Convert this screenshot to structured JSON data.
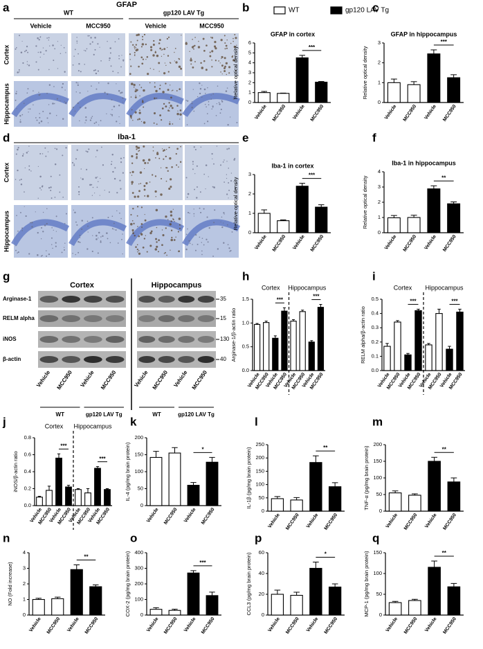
{
  "legend": [
    {
      "name": "WT",
      "color": "#ffffff"
    },
    {
      "name": "gp120 LAV Tg",
      "color": "#000000"
    }
  ],
  "image_panels": [
    {
      "panel": "a",
      "title": "GFAP",
      "groups": [
        "WT",
        "gp120 LAV Tg"
      ],
      "columns": [
        "Vehicle",
        "MCC950",
        "Vehicle",
        "MCC950"
      ],
      "rows": [
        "Cortex",
        "Hippocampus"
      ]
    },
    {
      "panel": "d",
      "title": "Iba-1",
      "rows": [
        "Cortex",
        "Hippocampus"
      ]
    }
  ],
  "blot": {
    "panel": "g",
    "regions": [
      "Cortex",
      "Hippocampus"
    ],
    "rows": [
      "Arginase-1",
      "RELM alpha",
      "iNOS",
      "β-actin"
    ],
    "markers": [
      35,
      15,
      130,
      40
    ],
    "lanes": [
      "Vehicle",
      "MCC950",
      "Vehicle",
      "MCC950"
    ],
    "groups": [
      "WT",
      "gp120 LAV Tg"
    ]
  },
  "chart_data": [
    {
      "type": "bar",
      "panel": "b",
      "title": "GFAP in cortex",
      "ylabel": "Relative optical density",
      "categories": [
        "Vehicle",
        "MCC950",
        "Vehicle",
        "MCC950"
      ],
      "values": [
        1.0,
        0.92,
        4.5,
        2.05
      ],
      "errors": [
        0.12,
        0.03,
        0.25,
        0.07
      ],
      "colors": [
        "#ffffff",
        "#ffffff",
        "#000000",
        "#000000"
      ],
      "ylim": [
        0,
        6
      ],
      "yticks": [
        0,
        1,
        2,
        3,
        4,
        5,
        6
      ],
      "annotations": [
        "***"
      ]
    },
    {
      "type": "bar",
      "panel": "c",
      "title": "GFAP in hippocampus",
      "ylabel": "Relative optical density",
      "categories": [
        "Vehicle",
        "MCC950",
        "Vehicle",
        "MCC950"
      ],
      "values": [
        1.0,
        0.9,
        2.45,
        1.25
      ],
      "errors": [
        0.18,
        0.15,
        0.2,
        0.15
      ],
      "colors": [
        "#ffffff",
        "#ffffff",
        "#000000",
        "#000000"
      ],
      "ylim": [
        0,
        3
      ],
      "yticks": [
        0,
        1,
        2,
        3
      ],
      "annotations": [
        "***"
      ]
    },
    {
      "type": "bar",
      "panel": "e",
      "title": "Iba-1 in cortex",
      "ylabel": "Relative optical density",
      "categories": [
        "Vehicle",
        "MCC950",
        "Vehicle",
        "MCC950"
      ],
      "values": [
        1.0,
        0.62,
        2.4,
        1.32
      ],
      "errors": [
        0.18,
        0.04,
        0.15,
        0.12
      ],
      "colors": [
        "#ffffff",
        "#ffffff",
        "#000000",
        "#000000"
      ],
      "ylim": [
        0,
        3
      ],
      "yticks": [
        0,
        1,
        2,
        3
      ],
      "annotations": [
        "***"
      ]
    },
    {
      "type": "bar",
      "panel": "f",
      "title": "Iba-1 in hippocampus",
      "ylabel": "Relative optical density",
      "categories": [
        "Vehicle",
        "MCC950",
        "Vehicle",
        "MCC950"
      ],
      "values": [
        0.98,
        1.0,
        2.88,
        1.9
      ],
      "errors": [
        0.15,
        0.15,
        0.2,
        0.12
      ],
      "colors": [
        "#ffffff",
        "#ffffff",
        "#000000",
        "#000000"
      ],
      "ylim": [
        0,
        4
      ],
      "yticks": [
        0,
        1,
        2,
        3,
        4
      ],
      "annotations": [
        "**"
      ]
    },
    {
      "type": "bar",
      "panel": "h",
      "group_labels": [
        "Cortex",
        "Hippocampus"
      ],
      "ylabel": "Arginase-1/β-actin ratio",
      "categories": [
        "Vehicle",
        "MCC950",
        "Vehicle",
        "MCC950",
        "Vehicle",
        "MCC950",
        "Vehicle",
        "MCC950"
      ],
      "values": [
        0.97,
        1.01,
        0.68,
        1.25,
        1.04,
        1.24,
        0.6,
        1.33
      ],
      "errors": [
        0.02,
        0.03,
        0.05,
        0.07,
        0.03,
        0.03,
        0.03,
        0.06
      ],
      "colors": [
        "#ffffff",
        "#ffffff",
        "#000000",
        "#000000",
        "#ffffff",
        "#ffffff",
        "#000000",
        "#000000"
      ],
      "ylim": [
        0,
        1.5
      ],
      "yticks": [
        {
          "value": 0,
          "label": "0.0"
        },
        0.5,
        {
          "value": 1,
          "label": "1.0"
        },
        1.5
      ],
      "annotations": [
        "***",
        "***"
      ]
    },
    {
      "type": "bar",
      "panel": "i",
      "group_labels": [
        "Cortex",
        "Hippocampus"
      ],
      "ylabel": "RELM alpha/β-actin ratio",
      "categories": [
        "Vehicle",
        "MCC950",
        "Vehicle",
        "MCC950",
        "Vehicle",
        "MCC950",
        "Vehicle",
        "MCC950"
      ],
      "values": [
        0.17,
        0.34,
        0.11,
        0.42,
        0.18,
        0.4,
        0.15,
        0.41
      ],
      "errors": [
        0.02,
        0.01,
        0.01,
        0.01,
        0.01,
        0.03,
        0.02,
        0.02
      ],
      "colors": [
        "#ffffff",
        "#ffffff",
        "#000000",
        "#000000",
        "#ffffff",
        "#ffffff",
        "#000000",
        "#000000"
      ],
      "ylim": [
        0,
        0.5
      ],
      "yticks": [
        {
          "value": 0,
          "label": "0.0"
        },
        0.1,
        0.2,
        0.3,
        0.4,
        0.5
      ],
      "annotations": [
        "***",
        "***"
      ]
    },
    {
      "type": "bar",
      "panel": "j",
      "group_labels": [
        "Cortex",
        "Hippocampus"
      ],
      "ylabel": "iNOS/β-actin ratio",
      "categories": [
        "Vehicle",
        "MCC950",
        "Vehicle",
        "MCC950",
        "Vehicle",
        "MCC950",
        "Vehicle",
        "MCC950"
      ],
      "values": [
        0.1,
        0.18,
        0.56,
        0.22,
        0.19,
        0.15,
        0.44,
        0.19
      ],
      "errors": [
        0.01,
        0.05,
        0.05,
        0.02,
        0.01,
        0.05,
        0.02,
        0.01
      ],
      "colors": [
        "#ffffff",
        "#ffffff",
        "#000000",
        "#000000",
        "#ffffff",
        "#ffffff",
        "#000000",
        "#000000"
      ],
      "ylim": [
        0,
        0.8
      ],
      "yticks": [
        {
          "value": 0,
          "label": "0.0"
        },
        0.2,
        0.4,
        0.6,
        0.8
      ],
      "annotations": [
        "***",
        "***"
      ]
    },
    {
      "type": "bar",
      "panel": "k",
      "ylabel": "IL-4 (pg/mg brain protein)",
      "categories": [
        "Vehicle",
        "MCC950",
        "Vehicle",
        "MCC950"
      ],
      "values": [
        142,
        155,
        60,
        128
      ],
      "errors": [
        18,
        16,
        8,
        14
      ],
      "colors": [
        "#ffffff",
        "#ffffff",
        "#000000",
        "#000000"
      ],
      "ylim": [
        0,
        200
      ],
      "yticks": [
        0,
        50,
        100,
        150,
        200
      ],
      "annotations": [
        "*"
      ]
    },
    {
      "type": "bar",
      "panel": "l",
      "ylabel": "IL-1β (pg/mg brain protein)",
      "categories": [
        "Vehicle",
        "MCC950",
        "Vehicle",
        "MCC950"
      ],
      "values": [
        47,
        42,
        183,
        92
      ],
      "errors": [
        8,
        9,
        25,
        15
      ],
      "colors": [
        "#ffffff",
        "#ffffff",
        "#000000",
        "#000000"
      ],
      "ylim": [
        0,
        250
      ],
      "yticks": [
        0,
        50,
        100,
        150,
        200,
        250
      ],
      "annotations": [
        "**"
      ]
    },
    {
      "type": "bar",
      "panel": "m",
      "ylabel": "TNF-α (pg/mg brain protein)",
      "categories": [
        "Vehicle",
        "MCC950",
        "Vehicle",
        "MCC950"
      ],
      "values": [
        55,
        48,
        150,
        88
      ],
      "errors": [
        6,
        4,
        12,
        12
      ],
      "colors": [
        "#ffffff",
        "#ffffff",
        "#000000",
        "#000000"
      ],
      "ylim": [
        0,
        200
      ],
      "yticks": [
        0,
        50,
        100,
        150,
        200
      ],
      "annotations": [
        "**"
      ]
    },
    {
      "type": "bar",
      "panel": "n",
      "ylabel": "NO (Fold increase)",
      "categories": [
        "Vehicle",
        "MCC950",
        "Vehicle",
        "MCC950"
      ],
      "values": [
        1.0,
        1.05,
        2.92,
        1.82
      ],
      "errors": [
        0.08,
        0.1,
        0.3,
        0.12
      ],
      "colors": [
        "#ffffff",
        "#ffffff",
        "#000000",
        "#000000"
      ],
      "ylim": [
        0,
        4
      ],
      "yticks": [
        0,
        1,
        2,
        3,
        4
      ],
      "annotations": [
        "**"
      ]
    },
    {
      "type": "bar",
      "panel": "o",
      "ylabel": "COX-2 (pg/mg brain protein)",
      "categories": [
        "Vehicle",
        "MCC950",
        "Vehicle",
        "MCC950"
      ],
      "values": [
        37,
        30,
        270,
        125
      ],
      "errors": [
        10,
        8,
        15,
        22
      ],
      "colors": [
        "#ffffff",
        "#ffffff",
        "#000000",
        "#000000"
      ],
      "ylim": [
        0,
        400
      ],
      "yticks": [
        0,
        100,
        200,
        300,
        400
      ],
      "annotations": [
        "***"
      ]
    },
    {
      "type": "bar",
      "panel": "p",
      "ylabel": "CCL3 (pg/mg brain protein)",
      "categories": [
        "Vehicle",
        "MCC950",
        "Vehicle",
        "MCC950"
      ],
      "values": [
        20,
        19,
        45,
        27
      ],
      "errors": [
        4,
        3,
        6,
        3
      ],
      "colors": [
        "#ffffff",
        "#ffffff",
        "#000000",
        "#000000"
      ],
      "ylim": [
        0,
        60
      ],
      "yticks": [
        0,
        20,
        40,
        60
      ],
      "annotations": [
        "*"
      ]
    },
    {
      "type": "bar",
      "panel": "q",
      "ylabel": "MCP-1 (pg/mg brain protein)",
      "categories": [
        "Vehicle",
        "MCC950",
        "Vehicle",
        "MCC950"
      ],
      "values": [
        30,
        35,
        115,
        68
      ],
      "errors": [
        3,
        3,
        15,
        8
      ],
      "colors": [
        "#ffffff",
        "#ffffff",
        "#000000",
        "#000000"
      ],
      "ylim": [
        0,
        150
      ],
      "yticks": [
        0,
        50,
        100,
        150
      ],
      "annotations": [
        "**"
      ]
    }
  ]
}
